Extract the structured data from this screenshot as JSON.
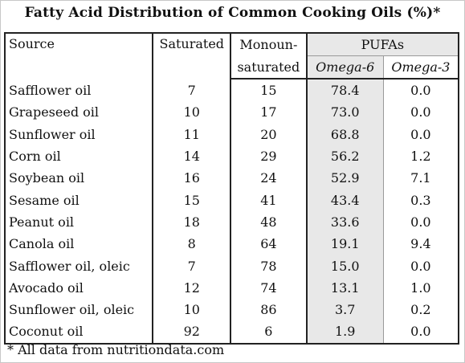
{
  "title": "Fatty Acid Distribution of Common Cooking Oils (%)*",
  "headers": {
    "source": "Source",
    "saturated": "Saturated",
    "mono_line1": "Monoun-",
    "mono_line2": "saturated",
    "pufas": "PUFAs",
    "omega6": "Omega-6",
    "omega3": "Omega-3"
  },
  "rows": [
    {
      "source": "Safflower oil",
      "saturated": "7",
      "mono": "15",
      "omega6": "78.4",
      "omega3": "0.0"
    },
    {
      "source": "Grapeseed oil",
      "saturated": "10",
      "mono": "17",
      "omega6": "73.0",
      "omega3": "0.0"
    },
    {
      "source": "Sunflower oil",
      "saturated": "11",
      "mono": "20",
      "omega6": "68.8",
      "omega3": "0.0"
    },
    {
      "source": "Corn oil",
      "saturated": "14",
      "mono": "29",
      "omega6": "56.2",
      "omega3": "1.2"
    },
    {
      "source": "Soybean oil",
      "saturated": "16",
      "mono": "24",
      "omega6": "52.9",
      "omega3": "7.1"
    },
    {
      "source": "Sesame oil",
      "saturated": "15",
      "mono": "41",
      "omega6": "43.4",
      "omega3": "0.3"
    },
    {
      "source": "Peanut oil",
      "saturated": "18",
      "mono": "48",
      "omega6": "33.6",
      "omega3": "0.0"
    },
    {
      "source": "Canola oil",
      "saturated": "8",
      "mono": "64",
      "omega6": "19.1",
      "omega3": "9.4"
    },
    {
      "source": "Safflower oil, oleic",
      "saturated": "7",
      "mono": "78",
      "omega6": "15.0",
      "omega3": "0.0"
    },
    {
      "source": "Avocado oil",
      "saturated": "12",
      "mono": "74",
      "omega6": "13.1",
      "omega3": "1.0"
    },
    {
      "source": "Sunflower oil, oleic",
      "saturated": "10",
      "mono": "86",
      "omega6": "3.7",
      "omega3": "0.2"
    },
    {
      "source": "Coconut oil",
      "saturated": "92",
      "mono": "6",
      "omega6": "1.9",
      "omega3": "0.0"
    }
  ],
  "footnote": "* All data from nutritiondata.com"
}
